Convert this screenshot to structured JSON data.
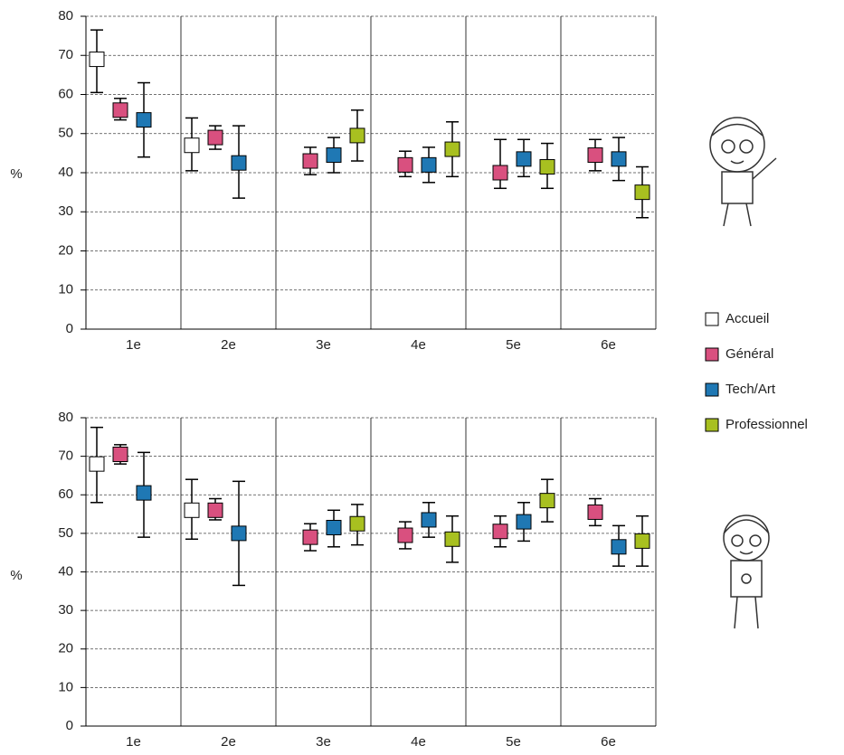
{
  "chart_data": [
    {
      "type": "errorbar",
      "ylabel": "%",
      "categories": [
        "1e",
        "2e",
        "3e",
        "4e",
        "5e",
        "6e"
      ],
      "ylim": [
        0,
        80
      ],
      "yticks": [
        0,
        10,
        20,
        30,
        40,
        50,
        60,
        70,
        80
      ],
      "grid": true,
      "series": [
        {
          "name": "Accueil",
          "color": "#ffffff",
          "values": [
            69,
            47,
            null,
            null,
            null,
            null
          ],
          "lows": [
            60.5,
            40.5,
            null,
            null,
            null,
            null
          ],
          "highs": [
            76.5,
            54,
            null,
            null,
            null,
            null
          ]
        },
        {
          "name": "Général",
          "color": "#d9507f",
          "values": [
            56,
            49,
            43,
            42,
            40,
            44.5
          ],
          "lows": [
            53.5,
            46,
            39.5,
            39,
            36,
            40.5
          ],
          "highs": [
            59,
            52,
            46.5,
            45.5,
            48.5,
            48.5
          ]
        },
        {
          "name": "Tech/Art",
          "color": "#1f78b4",
          "values": [
            53.5,
            42.5,
            44.5,
            42,
            43.5,
            43.5
          ],
          "lows": [
            44,
            33.5,
            40,
            37.5,
            39,
            38
          ],
          "highs": [
            63,
            52,
            49,
            46.5,
            48.5,
            49
          ]
        },
        {
          "name": "Professionnel",
          "color": "#a8c020",
          "values": [
            null,
            null,
            49.5,
            46,
            41.5,
            35
          ],
          "lows": [
            null,
            null,
            43,
            39,
            36,
            28.5
          ],
          "highs": [
            null,
            null,
            56,
            53,
            47.5,
            41.5
          ]
        }
      ]
    },
    {
      "type": "errorbar",
      "ylabel": "%",
      "categories": [
        "1e",
        "2e",
        "3e",
        "4e",
        "5e",
        "6e"
      ],
      "ylim": [
        0,
        80
      ],
      "yticks": [
        0,
        10,
        20,
        30,
        40,
        50,
        60,
        70,
        80
      ],
      "grid": true,
      "series": [
        {
          "values": [
            68,
            56,
            null,
            null,
            null,
            null
          ],
          "lows": [
            58,
            48.5,
            null,
            null,
            null,
            null
          ],
          "highs": [
            77.5,
            64,
            null,
            null,
            null,
            null
          ]
        },
        {
          "values": [
            70.5,
            56,
            49,
            49.5,
            50.5,
            55.5
          ],
          "lows": [
            68,
            53.5,
            45.5,
            46,
            46.5,
            52
          ],
          "highs": [
            73,
            59,
            52.5,
            53,
            54.5,
            59
          ]
        },
        {
          "values": [
            60.5,
            50,
            51.5,
            53.5,
            53,
            46.5
          ],
          "lows": [
            49,
            36.5,
            46.5,
            49,
            48,
            41.5
          ],
          "highs": [
            71,
            63.5,
            56,
            58,
            58,
            52
          ]
        },
        {
          "values": [
            null,
            null,
            52.5,
            48.5,
            58.5,
            48
          ],
          "lows": [
            null,
            null,
            47,
            42.5,
            53,
            41.5
          ],
          "highs": [
            null,
            null,
            57.5,
            54.5,
            64,
            54.5
          ]
        }
      ]
    }
  ]
}
